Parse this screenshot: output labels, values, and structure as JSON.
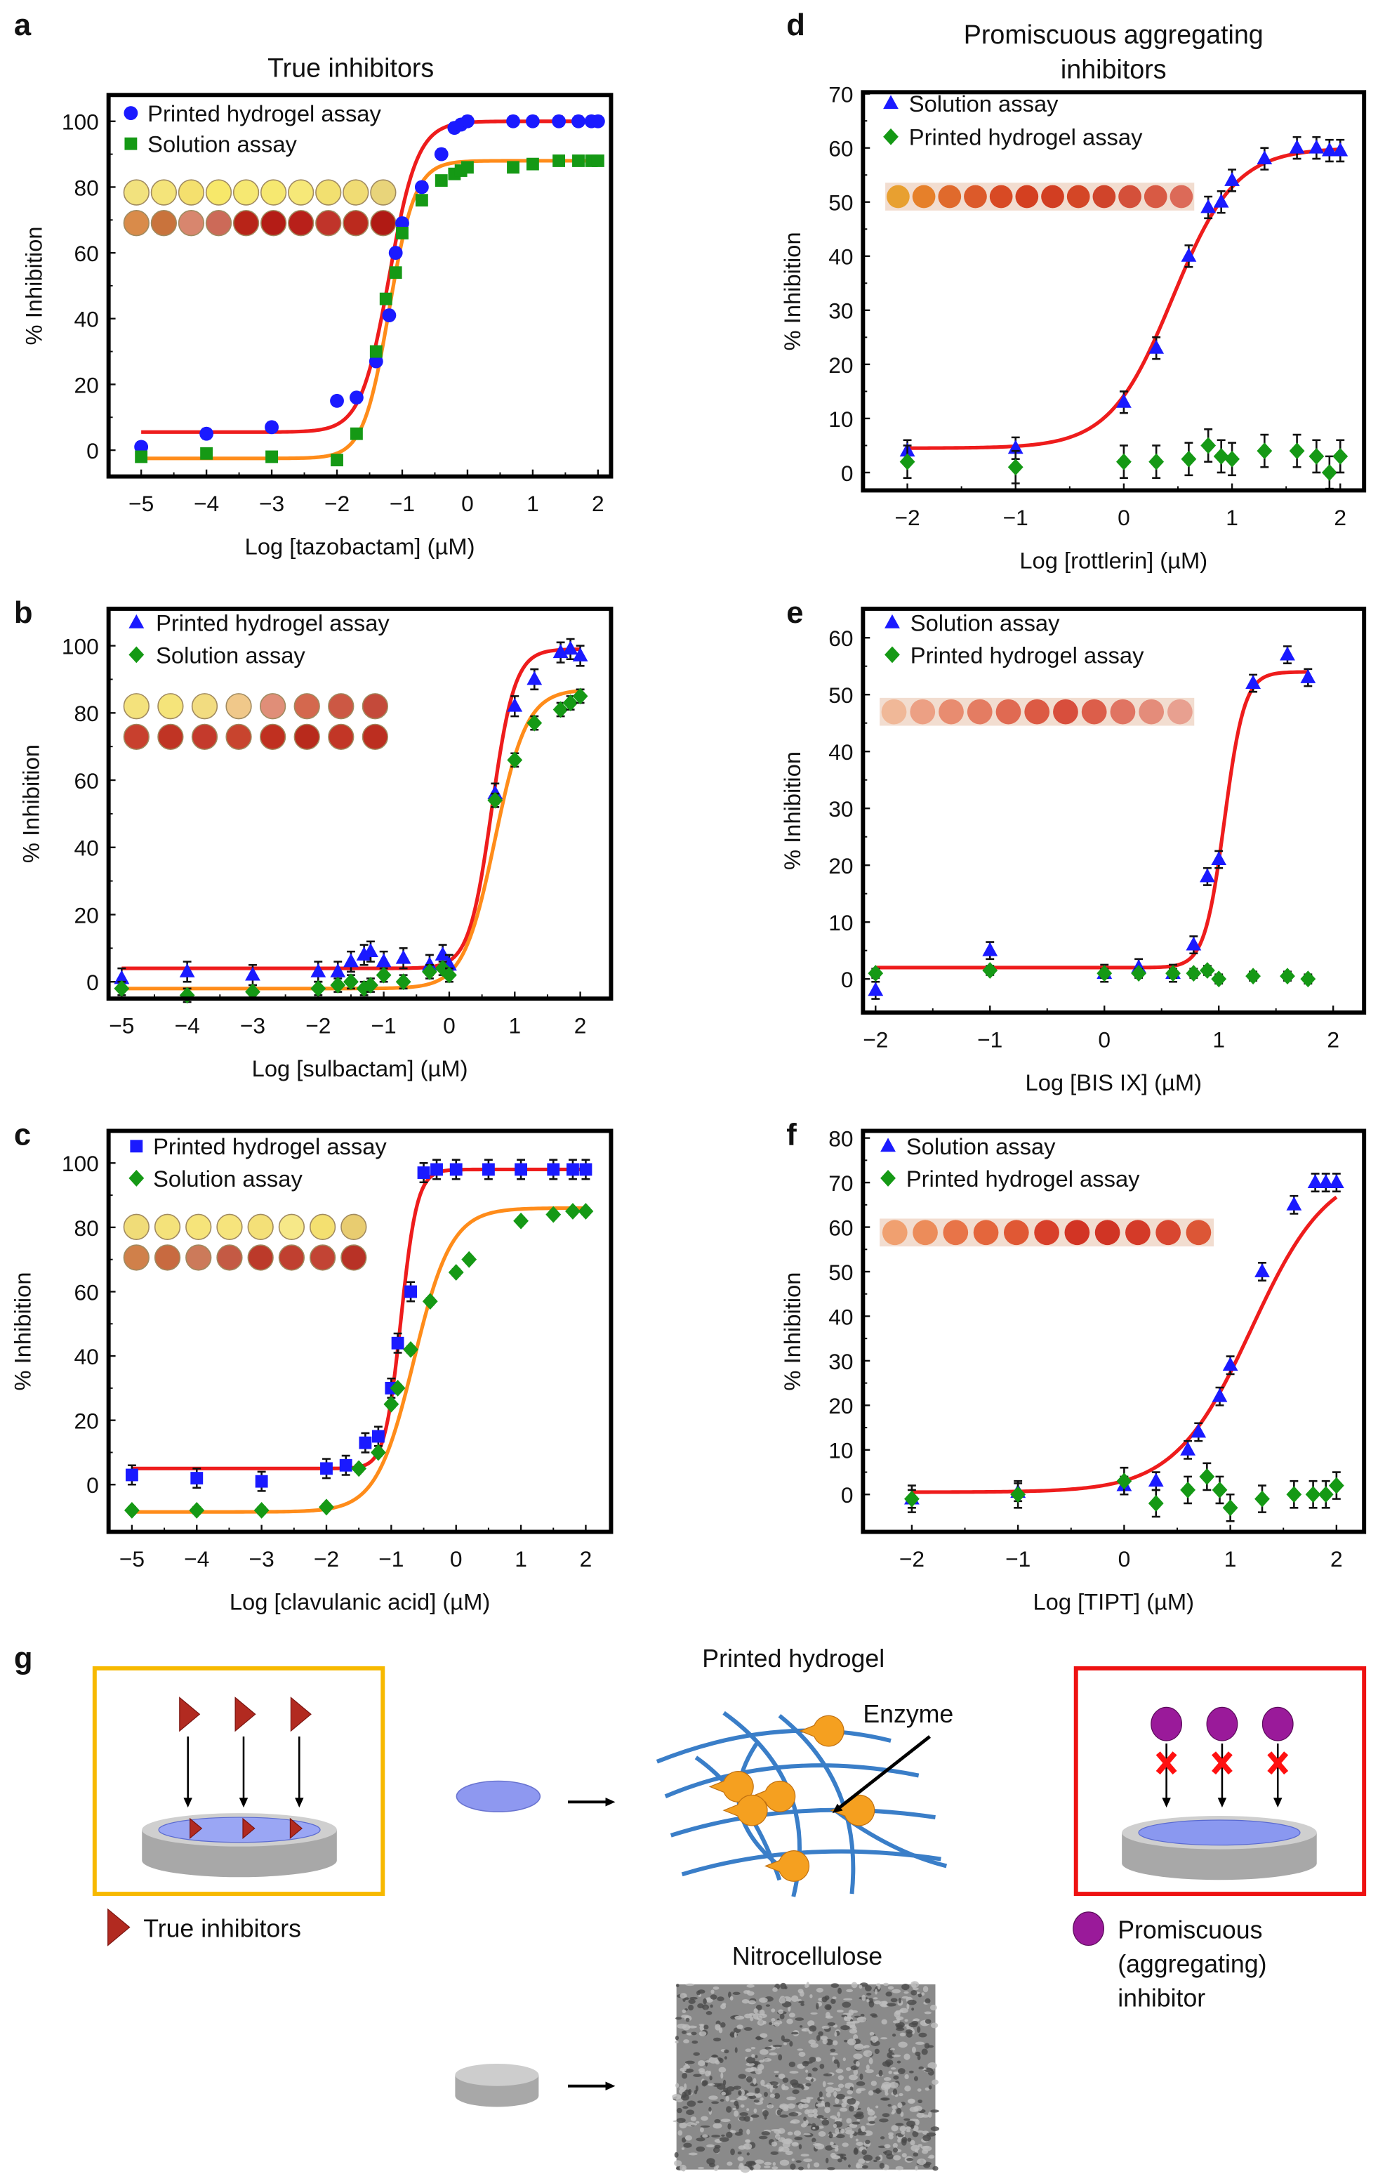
{
  "panel_labels": [
    "a",
    "b",
    "c",
    "d",
    "e",
    "f",
    "g"
  ],
  "titles": {
    "true_inhibitors": "True inhibitors",
    "promiscuous_line1": "Promiscuous aggregating",
    "promiscuous_line2": "inhibitors"
  },
  "colors": {
    "hydrogel_fit": "#ee1c1c",
    "solution_fit": "#ff8c1a",
    "blue": "#1a1aff",
    "green": "#159915",
    "yellow_box": "#f7b900",
    "red_box": "#ee1111"
  },
  "chart_data": [
    {
      "panel": "a",
      "type": "scatter",
      "title": "True inhibitors",
      "xlabel": "Log [tazobactam] (µM)",
      "ylabel": "% Inhibition",
      "xlim": [
        -5.5,
        2.2
      ],
      "ylim": [
        -8,
        108
      ],
      "xticks": [
        -5,
        -4,
        -3,
        -2,
        -1,
        0,
        1,
        2
      ],
      "xtick_labels": [
        "−5",
        "−4",
        "−3",
        "−2",
        "−1",
        "0",
        "1",
        "2"
      ],
      "yticks": [
        0,
        20,
        40,
        60,
        80,
        100
      ],
      "ytick_labels": [
        "0",
        "20",
        "40",
        "60",
        "80",
        "100"
      ],
      "legend": "top-left",
      "series": [
        {
          "name": "Printed hydrogel assay",
          "marker": "circle",
          "color": "#1a1aff",
          "err": 1.5,
          "x": [
            -5,
            -4,
            -3,
            -2,
            -1.7,
            -1.4,
            -1.2,
            -1.1,
            -1,
            -0.7,
            -0.4,
            -0.2,
            -0.1,
            0,
            0.7,
            1,
            1.4,
            1.7,
            1.9,
            2
          ],
          "y": [
            1,
            5,
            7,
            15,
            16,
            27,
            41,
            60,
            69,
            80,
            90,
            98,
            99,
            100,
            100,
            100,
            100,
            100,
            100,
            100
          ],
          "fit": {
            "bottom": 5.5,
            "top": 100,
            "log_ic50": -1.2,
            "hill": 2.0,
            "color": "#ee1c1c"
          }
        },
        {
          "name": "Solution assay",
          "marker": "square",
          "color": "#159915",
          "err": 1.2,
          "x": [
            -5,
            -4,
            -3,
            -2,
            -1.7,
            -1.4,
            -1.25,
            -1.1,
            -1,
            -0.7,
            -0.4,
            -0.2,
            -0.1,
            0,
            0.7,
            1,
            1.4,
            1.7,
            1.9,
            2
          ],
          "y": [
            -2,
            -1,
            -2,
            -3,
            5,
            30,
            46,
            54,
            66,
            76,
            82,
            84,
            85,
            86,
            86,
            87,
            88,
            88,
            88,
            88
          ],
          "fit": {
            "bottom": -2.5,
            "top": 88,
            "log_ic50": -1.2,
            "hill": 2.2,
            "color": "#ff8c1a"
          }
        }
      ],
      "inset_rows": [
        [
          "#f2e27e",
          "#f4e47a",
          "#f4e06e",
          "#f7e86a",
          "#f6e872",
          "#f6e870",
          "#f6e878",
          "#f2e070",
          "#f0dc74",
          "#e8d47a"
        ],
        [
          "#d98b4a",
          "#c9733c",
          "#d8866e",
          "#cc6a58",
          "#b82418",
          "#b41c16",
          "#b8201a",
          "#c0342a",
          "#bb2a1e",
          "#b01a14"
        ]
      ]
    },
    {
      "panel": "b",
      "type": "scatter",
      "xlabel": "Log [sulbactam] (µM)",
      "ylabel": "% Inhibition",
      "xlim": [
        -5.2,
        2.47
      ],
      "ylim": [
        -5,
        111
      ],
      "xticks": [
        -5,
        -4,
        -3,
        -2,
        -1,
        0,
        1,
        2
      ],
      "xtick_labels": [
        "−5",
        "−4",
        "−3",
        "−2",
        "−1",
        "0",
        "1",
        "2"
      ],
      "yticks": [
        0,
        20,
        40,
        60,
        80,
        100
      ],
      "ytick_labels": [
        "0",
        "20",
        "40",
        "60",
        "80",
        "100"
      ],
      "legend": "top-left",
      "series": [
        {
          "name": "Printed hydrogel assay",
          "marker": "triangle",
          "color": "#1a1aff",
          "err": 3,
          "x": [
            -5,
            -4,
            -3,
            -2,
            -1.7,
            -1.5,
            -1.3,
            -1.2,
            -1,
            -0.7,
            -0.3,
            -0.1,
            0,
            0.7,
            1,
            1.3,
            1.7,
            1.85,
            2
          ],
          "y": [
            1,
            3,
            2,
            3,
            3,
            6,
            8,
            9,
            6,
            7,
            5,
            8,
            5,
            56,
            82,
            90,
            98,
            99,
            97
          ],
          "fit": {
            "bottom": 4,
            "top": 99,
            "log_ic50": 0.65,
            "hill": 2.5,
            "color": "#ee1c1c"
          }
        },
        {
          "name": "Solution assay",
          "marker": "diamond",
          "color": "#159915",
          "err": 2,
          "x": [
            -5,
            -4,
            -3,
            -2,
            -1.7,
            -1.5,
            -1.3,
            -1.2,
            -1,
            -0.7,
            -0.3,
            -0.1,
            0,
            0.7,
            1,
            1.3,
            1.7,
            1.85,
            2
          ],
          "y": [
            -2,
            -4,
            -3,
            -2,
            -1,
            0,
            -2,
            -1,
            2,
            0,
            3,
            4,
            2,
            54,
            66,
            77,
            81,
            83,
            85
          ],
          "fit": {
            "bottom": -2,
            "top": 87,
            "log_ic50": 0.7,
            "hill": 1.8,
            "color": "#ff8c1a"
          }
        }
      ],
      "inset_rows": [
        [
          "#f4e27c",
          "#f5e47a",
          "#f2dc80",
          "#f0c88a",
          "#e08e78",
          "#d4684e",
          "#cc5844",
          "#c44a3a"
        ],
        [
          "#c8402e",
          "#c03424",
          "#c43a2c",
          "#c8442e",
          "#c03020",
          "#b82a1c",
          "#c23626",
          "#bc2e20"
        ]
      ]
    },
    {
      "panel": "c",
      "type": "scatter",
      "xlabel": "Log [clavulanic acid] (µM)",
      "ylabel": "% Inhibition",
      "xlim": [
        -5.36,
        2.39
      ],
      "ylim": [
        -14.7,
        110
      ],
      "xticks": [
        -5,
        -4,
        -3,
        -2,
        -1,
        0,
        1,
        2
      ],
      "xtick_labels": [
        "−5",
        "−4",
        "−3",
        "−2",
        "−1",
        "0",
        "1",
        "2"
      ],
      "yticks": [
        0,
        20,
        40,
        60,
        80,
        100
      ],
      "ytick_labels": [
        "0",
        "20",
        "40",
        "60",
        "80",
        "100"
      ],
      "legend": "top-left",
      "series": [
        {
          "name": "Printed hydrogel assay",
          "marker": "square",
          "color": "#1a1aff",
          "err": 3,
          "x": [
            -5,
            -4,
            -3,
            -2,
            -1.7,
            -1.4,
            -1.2,
            -1,
            -0.9,
            -0.7,
            -0.5,
            -0.3,
            0,
            0.5,
            1,
            1.5,
            1.8,
            2
          ],
          "y": [
            3,
            2,
            1,
            5,
            6,
            13,
            15,
            30,
            44,
            60,
            97,
            98,
            98,
            98,
            98,
            98,
            98,
            98
          ],
          "fit": {
            "bottom": 5,
            "top": 98,
            "log_ic50": -0.85,
            "hill": 3.5,
            "color": "#ee1c1c"
          }
        },
        {
          "name": "Solution assay",
          "marker": "diamond",
          "color": "#159915",
          "err": 1,
          "x": [
            -5,
            -4,
            -3,
            -2,
            -1.5,
            -1.2,
            -1,
            -0.9,
            -0.7,
            -0.4,
            0,
            0.2,
            1,
            1.5,
            1.8,
            2
          ],
          "y": [
            -8,
            -8,
            -8,
            -7,
            5,
            10,
            25,
            30,
            42,
            57,
            66,
            70,
            82,
            84,
            85,
            85
          ],
          "fit": {
            "bottom": -8.5,
            "top": 86,
            "log_ic50": -0.65,
            "hill": 1.5,
            "color": "#ff8c1a"
          }
        }
      ],
      "inset_rows": [
        [
          "#f0dc78",
          "#f4e27a",
          "#f6e47a",
          "#f6e47c",
          "#f4e078",
          "#f6e888",
          "#f4e070",
          "#e8cc70"
        ],
        [
          "#d0804a",
          "#c86a40",
          "#cc7a5a",
          "#c45a44",
          "#bc3a2a",
          "#c04030",
          "#c24434",
          "#b83226"
        ]
      ]
    },
    {
      "panel": "d",
      "type": "scatter",
      "title": "Promiscuous aggregating inhibitors",
      "xlabel": "Log [rottlerin] (µM)",
      "ylabel": "% Inhibition",
      "xlim": [
        -2.41,
        2.22
      ],
      "ylim": [
        -3.3,
        70.3
      ],
      "xticks": [
        -2,
        -1,
        0,
        1,
        2
      ],
      "xtick_labels": [
        "−2",
        "−1",
        "0",
        "1",
        "2"
      ],
      "yticks": [
        0,
        10,
        20,
        30,
        40,
        50,
        60,
        70
      ],
      "ytick_labels": [
        "0",
        "10",
        "20",
        "30",
        "40",
        "50",
        "60",
        "70"
      ],
      "legend": "top-left",
      "series": [
        {
          "name": "Solution assay",
          "marker": "triangle",
          "color": "#1a1aff",
          "err": 2,
          "x": [
            -2,
            -1,
            0,
            0.3,
            0.6,
            0.78,
            0.9,
            1,
            1.3,
            1.6,
            1.78,
            1.9,
            2
          ],
          "y": [
            4,
            4.5,
            13,
            23,
            40,
            49,
            50,
            54,
            58,
            60,
            60,
            59.5,
            59.5
          ],
          "fit": {
            "bottom": 4.5,
            "top": 60,
            "log_ic50": 0.45,
            "hill": 1.5,
            "color": "#ee1c1c"
          }
        },
        {
          "name": "Printed hydrogel assay",
          "marker": "diamond",
          "color": "#159915",
          "err": 3,
          "x": [
            -2,
            -1,
            0,
            0.3,
            0.6,
            0.78,
            0.9,
            1,
            1.3,
            1.6,
            1.78,
            1.9,
            2
          ],
          "y": [
            2,
            1,
            2,
            2,
            2.5,
            5,
            3,
            2.5,
            4,
            4,
            3,
            0,
            3
          ]
        }
      ],
      "inset_strip": [
        "#e8a030",
        "#e6802a",
        "#e06a2c",
        "#dc5a2a",
        "#d84a24",
        "#d44020",
        "#d23e22",
        "#d44626",
        "#d0442a",
        "#d4503a",
        "#d85a44",
        "#dc6a58"
      ]
    },
    {
      "panel": "e",
      "type": "scatter",
      "xlabel": "Log [BIS IX] (µM)",
      "ylabel": "% Inhibition",
      "xlim": [
        -2.11,
        2.27
      ],
      "ylim": [
        -5.9,
        65.1
      ],
      "xticks": [
        -2,
        -1,
        0,
        1,
        2
      ],
      "xtick_labels": [
        "−2",
        "−1",
        "0",
        "1",
        "2"
      ],
      "yticks": [
        0,
        10,
        20,
        30,
        40,
        50,
        60
      ],
      "ytick_labels": [
        "0",
        "10",
        "20",
        "30",
        "40",
        "50",
        "60"
      ],
      "legend": "top-left",
      "series": [
        {
          "name": "Solution assay",
          "marker": "triangle",
          "color": "#1a1aff",
          "err": 1.5,
          "x": [
            -2,
            -1,
            0,
            0.3,
            0.6,
            0.78,
            0.9,
            1,
            1.3,
            1.6,
            1.78
          ],
          "y": [
            -2,
            5,
            1,
            2,
            1,
            6,
            18,
            21,
            52,
            57,
            53
          ],
          "fit": {
            "bottom": 2,
            "top": 54,
            "log_ic50": 1.05,
            "hill": 5,
            "color": "#ee1c1c"
          }
        },
        {
          "name": "Printed hydrogel assay",
          "marker": "diamond",
          "color": "#159915",
          "err": 0.8,
          "x": [
            -2,
            -1,
            0,
            0.3,
            0.6,
            0.78,
            0.9,
            1,
            1.3,
            1.6,
            1.78
          ],
          "y": [
            1,
            1.5,
            1,
            1,
            1,
            1,
            1.5,
            0,
            0.5,
            0.5,
            0
          ]
        }
      ],
      "inset_strip": [
        "#f0b898",
        "#eca084",
        "#e88c70",
        "#e47c62",
        "#e06a52",
        "#dc5a44",
        "#d84e3c",
        "#dc5e4a",
        "#e07462",
        "#e48c7a",
        "#e8a090"
      ]
    },
    {
      "panel": "f",
      "type": "scatter",
      "xlabel": "Log [TIPT] (µM)",
      "ylabel": "% Inhibition",
      "xlim": [
        -2.46,
        2.26
      ],
      "ylim": [
        -8.4,
        81.6
      ],
      "xticks": [
        -2,
        -1,
        0,
        1,
        2
      ],
      "xtick_labels": [
        "−2",
        "−1",
        "0",
        "1",
        "2"
      ],
      "yticks": [
        0,
        10,
        20,
        30,
        40,
        50,
        60,
        70,
        80
      ],
      "ytick_labels": [
        "0",
        "10",
        "20",
        "30",
        "40",
        "50",
        "60",
        "70",
        "80"
      ],
      "legend": "top-left",
      "series": [
        {
          "name": "Solution assay",
          "marker": "triangle",
          "color": "#1a1aff",
          "err": 2,
          "x": [
            -2,
            -1,
            0,
            0.3,
            0.6,
            0.7,
            0.9,
            1,
            1.3,
            1.6,
            1.8,
            1.9,
            2
          ],
          "y": [
            -1,
            0.5,
            2,
            3,
            10,
            14,
            22,
            29,
            50,
            65,
            70,
            70,
            70
          ],
          "fit": {
            "bottom": 0.5,
            "top": 74,
            "log_ic50": 1.2,
            "hill": 1.2,
            "color": "#ee1c1c"
          }
        },
        {
          "name": "Printed hydrogel assay",
          "marker": "diamond",
          "color": "#159915",
          "err": 3,
          "x": [
            -2,
            -1,
            0,
            0.3,
            0.6,
            0.78,
            0.9,
            1,
            1.3,
            1.6,
            1.78,
            1.9,
            2
          ],
          "y": [
            -1,
            0,
            3,
            -2,
            1,
            4,
            1,
            -3,
            -1,
            0,
            0,
            0,
            2
          ]
        }
      ],
      "inset_strip": [
        "#f0a070",
        "#ec8c5a",
        "#e87448",
        "#e4663c",
        "#e05834",
        "#d8402a",
        "#d23424",
        "#d03424",
        "#d43a28",
        "#d84630",
        "#dc5636"
      ]
    }
  ],
  "diagram": {
    "printed_hydrogel": "Printed hydrogel",
    "enzyme": "Enzyme",
    "nitrocellulose": "Nitrocellulose",
    "true_inhibitors": "True inhibitors",
    "promiscuous_lines": [
      "Promiscuous",
      "(aggregating)",
      "inhibitor"
    ]
  }
}
